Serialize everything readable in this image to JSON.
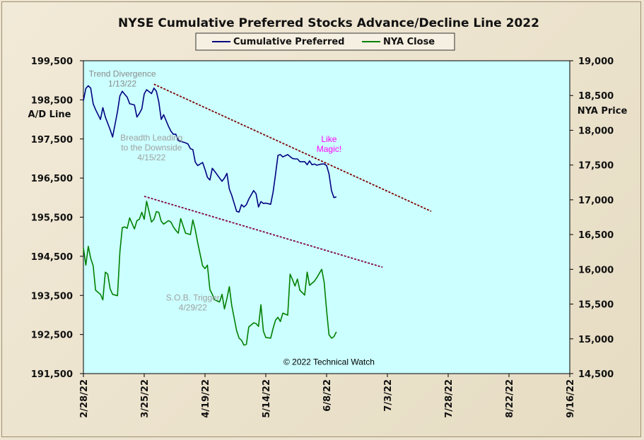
{
  "chart_data": {
    "type": "line",
    "title": "NYSE Cumulative  Preferred Stocks Advance/Decline  Line 2022",
    "ylabel_left": "A/D Line",
    "ylabel_right": "NYA Price",
    "left_axis": {
      "ylim": [
        191500,
        199500
      ],
      "tick_labels": [
        "199,500",
        "198,500",
        "197,500",
        "196,500",
        "195,500",
        "194,500",
        "193,500",
        "192,500",
        "191,500"
      ]
    },
    "right_axis": {
      "ylim": [
        14500,
        19000
      ],
      "tick_labels": [
        "19,000",
        "18,500",
        "18,000",
        "17,500",
        "17,000",
        "16,500",
        "16,000",
        "15,500",
        "15,000",
        "14,500"
      ]
    },
    "x_tick_labels": [
      "2/28/22",
      "3/25/22",
      "4/19/22",
      "5/14/22",
      "6/8/22",
      "7/3/22",
      "7/28/22",
      "8/22/22",
      "9/16/22"
    ],
    "x_range_days": [
      0,
      200
    ],
    "grid": false,
    "legend_position": "top-center",
    "colors": {
      "plot_bg": "#ccffff",
      "ad_line": "#000080",
      "nya_line": "#008000",
      "trendline": "#800000",
      "trendline2": "#800040"
    },
    "series": [
      {
        "name": "Cumulative Preferred",
        "axis": "left",
        "color": "#000080",
        "x_days": [
          0,
          1,
          2,
          3,
          4,
          5,
          7,
          8,
          9,
          10,
          11,
          12,
          14,
          15,
          16,
          17,
          18,
          19,
          21,
          22,
          23,
          24,
          25,
          26,
          28,
          29,
          30,
          31,
          32,
          33,
          35,
          36,
          37,
          38,
          39,
          40,
          42,
          43,
          44,
          45,
          46,
          47,
          49,
          50,
          51,
          52,
          53,
          54,
          56,
          57,
          58,
          59,
          60,
          61,
          63,
          64,
          65,
          66,
          67,
          68,
          70,
          71,
          72,
          73,
          74,
          75,
          77,
          78,
          79,
          80,
          81,
          82,
          84,
          85,
          86,
          87,
          88,
          89,
          91,
          92,
          93,
          94,
          95,
          96,
          98,
          99,
          100,
          101,
          102,
          103,
          104
        ],
        "values": [
          198480,
          198790,
          198860,
          198800,
          198400,
          198250,
          198000,
          198300,
          198060,
          197900,
          197740,
          197550,
          198200,
          198600,
          198720,
          198640,
          198570,
          198400,
          198370,
          198060,
          198150,
          198270,
          198650,
          198760,
          198660,
          198800,
          198720,
          198450,
          198000,
          198120,
          197820,
          197700,
          197620,
          197620,
          197460,
          197440,
          197400,
          197370,
          197250,
          197230,
          196910,
          196820,
          196900,
          196720,
          196520,
          196450,
          196750,
          196670,
          196500,
          196420,
          196500,
          196620,
          196220,
          196060,
          195650,
          195630,
          195820,
          195760,
          195820,
          195960,
          196180,
          196100,
          195760,
          195900,
          195850,
          195860,
          195830,
          196140,
          196600,
          197080,
          197100,
          197040,
          197100,
          197050,
          197000,
          196990,
          196990,
          196920,
          196920,
          196840,
          196940,
          196840,
          196860,
          196830,
          196860,
          196860,
          196820,
          196610,
          196180,
          196000,
          196020
        ]
      },
      {
        "name": "NYA Close",
        "axis": "right",
        "color": "#008000",
        "x_days": [
          0,
          1,
          2,
          3,
          4,
          5,
          7,
          8,
          9,
          10,
          11,
          12,
          14,
          15,
          16,
          17,
          18,
          19,
          21,
          22,
          23,
          24,
          25,
          26,
          28,
          29,
          30,
          31,
          32,
          33,
          35,
          36,
          37,
          38,
          39,
          40,
          42,
          43,
          44,
          45,
          46,
          47,
          49,
          50,
          51,
          52,
          53,
          54,
          56,
          57,
          58,
          59,
          60,
          61,
          63,
          64,
          65,
          66,
          67,
          68,
          70,
          71,
          72,
          73,
          74,
          75,
          77,
          78,
          79,
          80,
          81,
          82,
          84,
          85,
          86,
          87,
          88,
          89,
          91,
          92,
          93,
          94,
          95,
          96,
          98,
          99,
          100,
          101,
          102,
          103,
          104
        ],
        "values": [
          16310,
          16060,
          16330,
          16160,
          16050,
          15700,
          15640,
          15560,
          15960,
          15930,
          15720,
          15640,
          15620,
          16250,
          16600,
          16610,
          16590,
          16740,
          16580,
          16700,
          16720,
          16820,
          16720,
          16980,
          16680,
          16720,
          16830,
          16820,
          16690,
          16650,
          16700,
          16680,
          16610,
          16560,
          16520,
          16730,
          16520,
          16510,
          16500,
          16710,
          16570,
          16380,
          16050,
          16010,
          16060,
          15710,
          15640,
          15560,
          15530,
          15640,
          15430,
          15580,
          15750,
          15480,
          15120,
          15010,
          14980,
          14910,
          14920,
          15170,
          15230,
          15220,
          15180,
          15490,
          15110,
          15020,
          15010,
          15150,
          15270,
          15310,
          15250,
          15370,
          15340,
          15930,
          15850,
          15760,
          15860,
          15700,
          15630,
          15960,
          15770,
          15800,
          15830,
          15880,
          16000,
          15810,
          15410,
          15060,
          15010,
          15030,
          15100
        ]
      }
    ],
    "trendlines": [
      {
        "axis": "left",
        "from": [
          29,
          198900
        ],
        "to": [
          143,
          195650
        ]
      },
      {
        "axis": "right",
        "from": [
          25,
          17050
        ],
        "to": [
          123,
          16030
        ]
      }
    ],
    "annotations": [
      {
        "lines": [
          "Trend  Divergence",
          "1/13/22"
        ],
        "color": "#8a8a8a",
        "anchor": [
          16,
          199090
        ],
        "axis": "left"
      },
      {
        "lines": [
          "Breadth Leading",
          "to the Downside",
          "4/15/22"
        ],
        "color": "#a0a0a0",
        "anchor": [
          28,
          197460
        ],
        "axis": "left"
      },
      {
        "lines": [
          "Like",
          "Magic!"
        ],
        "color": "#ff00ff",
        "anchor": [
          101,
          197420
        ],
        "axis": "left"
      },
      {
        "lines": [
          "S.O.B. Trigger",
          "4/29/22"
        ],
        "color": "#a0a0a0",
        "anchor": [
          45,
          15550
        ],
        "axis": "right"
      },
      {
        "lines": [
          "© 2022 Technical Watch"
        ],
        "color": "#000000",
        "anchor": [
          101,
          14625
        ],
        "axis": "right"
      }
    ]
  }
}
